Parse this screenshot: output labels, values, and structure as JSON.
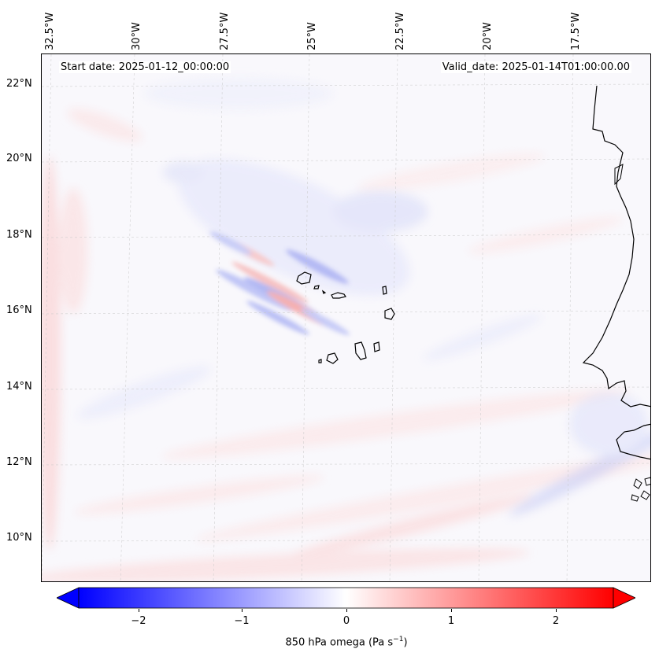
{
  "annotations": {
    "start_date": "Start date: 2025-01-12_00:00:00",
    "valid_date": "Valid_date: 2025-01-14T01:00:00.00"
  },
  "lat_labels": [
    "22°N",
    "20°N",
    "18°N",
    "16°N",
    "14°N",
    "12°N",
    "10°N"
  ],
  "lon_labels": [
    "32.5°W",
    "30°W",
    "27.5°W",
    "25°W",
    "22.5°W",
    "20°W",
    "17.5°W"
  ],
  "colorbar": {
    "ticks": [
      "−2",
      "−1",
      "0",
      "1",
      "2"
    ],
    "label": "850 hPa omega (Pa s",
    "label_sup": "−1",
    "label_end": ")",
    "colormap": "bwr",
    "min_color": "#0000ff",
    "mid_color": "#ffffff",
    "max_color": "#ff0000"
  },
  "map": {
    "coastline_color": "#000000",
    "grid": true,
    "features": [
      "cape-verde-islands",
      "african-coastline"
    ]
  }
}
